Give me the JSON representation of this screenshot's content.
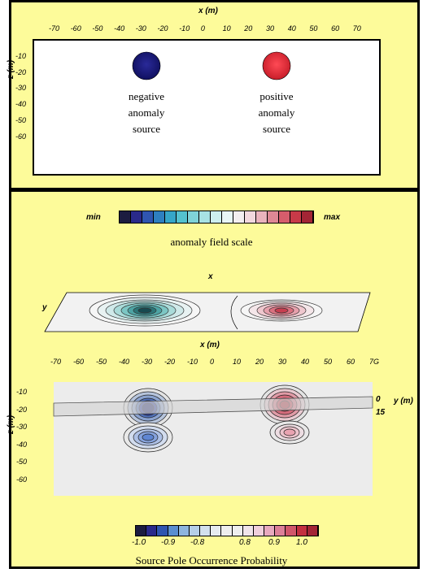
{
  "top_panel": {
    "x_axis_label": "x (m)",
    "z_axis_label": "z (m)",
    "x_ticks": [
      "-70",
      "-60",
      "-50",
      "-40",
      "-30",
      "-20",
      "-10",
      "0",
      "10",
      "20",
      "30",
      "40",
      "50",
      "60",
      "70"
    ],
    "z_ticks": [
      "-10",
      "-20",
      "-30",
      "-40",
      "-50",
      "-60"
    ],
    "negative_source_label": [
      "negative",
      "anomaly",
      "source"
    ],
    "positive_source_label": [
      "positive",
      "anomaly",
      "source"
    ],
    "negative_color": "#1a1a7a",
    "positive_color": "#e8323a"
  },
  "field_scale": {
    "min_label": "min",
    "max_label": "max",
    "caption": "anomaly field scale",
    "colors": [
      "#1c1c40",
      "#2a2a8a",
      "#2f55b0",
      "#2e7fc0",
      "#36a6c8",
      "#54c2cf",
      "#7fd3d8",
      "#a7e2e3",
      "#cdeff0",
      "#e8f6f6",
      "#f3eef0",
      "#f2d8de",
      "#eab3bd",
      "#df8895",
      "#d65d6c",
      "#c83a48",
      "#a32535"
    ]
  },
  "surface_map": {
    "x_label": "x",
    "y_label": "y"
  },
  "bottom_panel": {
    "x_axis_label": "x (m)",
    "z_axis_label": "z (m)",
    "y_axis_label": "y (m)",
    "x_ticks": [
      "-70",
      "-60",
      "-50",
      "-40",
      "-30",
      "-20",
      "-10",
      "0",
      "10",
      "20",
      "30",
      "40",
      "50",
      "60",
      "7G"
    ],
    "z_ticks": [
      "-10",
      "-20",
      "-30",
      "-40",
      "-50",
      "-60"
    ],
    "y_ticks": [
      "0",
      "15"
    ]
  },
  "probability_scale": {
    "tick_labels": [
      "-1.0",
      "-0.9",
      "-0.8",
      "0.8",
      "0.9",
      "1.0"
    ],
    "caption": "Source Pole Occurrence Probability",
    "colors": [
      "#1c1c40",
      "#2a2a8a",
      "#2f55b0",
      "#5a8ed0",
      "#8eb5de",
      "#b5cfe8",
      "#d2e0ee",
      "#e6ebf0",
      "#eeeeee",
      "#eeeeee",
      "#f0e4ea",
      "#f0cfdc",
      "#e8a9bf",
      "#dd7f98",
      "#d1566a",
      "#c33040",
      "#a32535"
    ]
  }
}
